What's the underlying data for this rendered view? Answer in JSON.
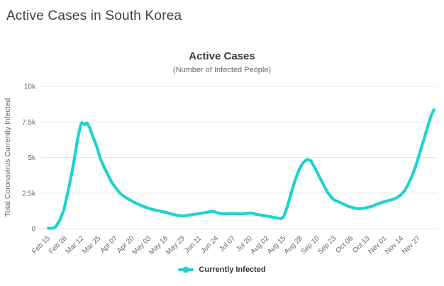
{
  "page": {
    "title": "Active Cases in South Korea"
  },
  "chart": {
    "title": "Active Cases",
    "subtitle": "(Number of Infected People)",
    "y_axis_title": "Total Coronavirus Currently Infected",
    "legend": {
      "label": "Currently Infected"
    }
  },
  "colors": {
    "series": "#20d2cf",
    "grid": "#e7e7e7",
    "axis_text": "#666666",
    "title_text": "#3a3a3a",
    "subtitle_text": "#666666",
    "page_title": "#3c4250",
    "legend_text": "#333333",
    "background": "#ffffff"
  },
  "chart_data": {
    "type": "line",
    "title": "Active Cases",
    "subtitle": "(Number of Infected People)",
    "xlabel": "",
    "ylabel": "Total Coronavirus Currently Infected",
    "ylim": [
      0,
      10000
    ],
    "grid": "horizontal-only",
    "legend_position": "bottom-center",
    "y_ticks": [
      {
        "value": 0,
        "label": "0"
      },
      {
        "value": 2500,
        "label": "2.5k"
      },
      {
        "value": 5000,
        "label": "5k"
      },
      {
        "value": 7500,
        "label": "7.5k"
      },
      {
        "value": 10000,
        "label": "10k"
      }
    ],
    "x_tick_labels": [
      {
        "day": 0,
        "label": "Feb 15"
      },
      {
        "day": 13,
        "label": "Feb 28"
      },
      {
        "day": 26,
        "label": "Mar 12"
      },
      {
        "day": 39,
        "label": "Mar 25"
      },
      {
        "day": 52,
        "label": "Apr 07"
      },
      {
        "day": 65,
        "label": "Apr 20"
      },
      {
        "day": 78,
        "label": "May 03"
      },
      {
        "day": 91,
        "label": "May 16"
      },
      {
        "day": 104,
        "label": "May 29"
      },
      {
        "day": 117,
        "label": "Jun 11"
      },
      {
        "day": 130,
        "label": "Jun 24"
      },
      {
        "day": 143,
        "label": "Jul 07"
      },
      {
        "day": 156,
        "label": "Jul 20"
      },
      {
        "day": 169,
        "label": "Aug 02"
      },
      {
        "day": 182,
        "label": "Aug 15"
      },
      {
        "day": 195,
        "label": "Aug 28"
      },
      {
        "day": 208,
        "label": "Sep 10"
      },
      {
        "day": 221,
        "label": "Sep 23"
      },
      {
        "day": 234,
        "label": "Oct 06"
      },
      {
        "day": 247,
        "label": "Oct 19"
      },
      {
        "day": 260,
        "label": "Nov 01"
      },
      {
        "day": 273,
        "label": "Nov 14"
      },
      {
        "day": 286,
        "label": "Nov 27"
      }
    ],
    "series": [
      {
        "name": "Currently Infected",
        "color": "#20d2cf",
        "points_format": [
          "day_offset_from_Feb15",
          "active_cases",
          "date"
        ],
        "points": [
          [
            0,
            28,
            "Feb 15"
          ],
          [
            4,
            30,
            "Feb 19"
          ],
          [
            6,
            150,
            "Feb 21"
          ],
          [
            9,
            600,
            "Feb 24"
          ],
          [
            12,
            1300,
            "Feb 27"
          ],
          [
            15,
            2500,
            "Mar 01"
          ],
          [
            17,
            3350,
            "Mar 03"
          ],
          [
            19,
            4300,
            "Mar 05"
          ],
          [
            21,
            5350,
            "Mar 07"
          ],
          [
            23,
            6450,
            "Mar 09"
          ],
          [
            25,
            7250,
            "Mar 11"
          ],
          [
            26,
            7450,
            "Mar 12"
          ],
          [
            28,
            7320,
            "Mar 14"
          ],
          [
            30,
            7430,
            "Mar 16"
          ],
          [
            32,
            7100,
            "Mar 18"
          ],
          [
            35,
            6350,
            "Mar 21"
          ],
          [
            38,
            5650,
            "Mar 24"
          ],
          [
            40,
            4980,
            "Mar 26"
          ],
          [
            43,
            4350,
            "Mar 29"
          ],
          [
            46,
            3800,
            "Apr 01"
          ],
          [
            49,
            3270,
            "Apr 04"
          ],
          [
            52,
            2880,
            "Apr 07"
          ],
          [
            56,
            2450,
            "Apr 11"
          ],
          [
            60,
            2180,
            "Apr 15"
          ],
          [
            65,
            1920,
            "Apr 20"
          ],
          [
            70,
            1700,
            "Apr 25"
          ],
          [
            75,
            1510,
            "Apr 30"
          ],
          [
            80,
            1360,
            "May 05"
          ],
          [
            85,
            1260,
            "May 10"
          ],
          [
            91,
            1140,
            "May 16"
          ],
          [
            96,
            1010,
            "May 21"
          ],
          [
            100,
            930,
            "May 25"
          ],
          [
            104,
            890,
            "May 29"
          ],
          [
            108,
            945,
            "Jun 02"
          ],
          [
            113,
            1010,
            "Jun 07"
          ],
          [
            118,
            1080,
            "Jun 12"
          ],
          [
            123,
            1160,
            "Jun 17"
          ],
          [
            127,
            1230,
            "Jun 21"
          ],
          [
            130,
            1140,
            "Jun 24"
          ],
          [
            133,
            1070,
            "Jun 27"
          ],
          [
            137,
            1045,
            "Jul 01"
          ],
          [
            141,
            1060,
            "Jul 05"
          ],
          [
            146,
            1050,
            "Jul 10"
          ],
          [
            150,
            1035,
            "Jul 14"
          ],
          [
            154,
            1080,
            "Jul 18"
          ],
          [
            157,
            1105,
            "Jul 21"
          ],
          [
            160,
            1020,
            "Jul 24"
          ],
          [
            164,
            955,
            "Jul 28"
          ],
          [
            169,
            880,
            "Aug 02"
          ],
          [
            174,
            800,
            "Aug 07"
          ],
          [
            178,
            730,
            "Aug 11"
          ],
          [
            180,
            700,
            "Aug 13"
          ],
          [
            182,
            860,
            "Aug 15"
          ],
          [
            185,
            1620,
            "Aug 18"
          ],
          [
            188,
            2600,
            "Aug 21"
          ],
          [
            191,
            3480,
            "Aug 24"
          ],
          [
            194,
            4180,
            "Aug 27"
          ],
          [
            197,
            4640,
            "Aug 30"
          ],
          [
            200,
            4870,
            "Sep 02"
          ],
          [
            203,
            4760,
            "Sep 05"
          ],
          [
            206,
            4270,
            "Sep 08"
          ],
          [
            210,
            3560,
            "Sep 12"
          ],
          [
            213,
            3020,
            "Sep 15"
          ],
          [
            216,
            2520,
            "Sep 18"
          ],
          [
            219,
            2180,
            "Sep 21"
          ],
          [
            221,
            2010,
            "Sep 23"
          ],
          [
            225,
            1860,
            "Sep 27"
          ],
          [
            229,
            1690,
            "Oct 01"
          ],
          [
            232,
            1560,
            "Oct 04"
          ],
          [
            236,
            1460,
            "Oct 08"
          ],
          [
            240,
            1400,
            "Oct 12"
          ],
          [
            243,
            1425,
            "Oct 15"
          ],
          [
            246,
            1480,
            "Oct 18"
          ],
          [
            250,
            1560,
            "Oct 22"
          ],
          [
            253,
            1680,
            "Oct 25"
          ],
          [
            256,
            1790,
            "Oct 28"
          ],
          [
            260,
            1900,
            "Nov 01"
          ],
          [
            263,
            1975,
            "Nov 04"
          ],
          [
            266,
            2050,
            "Nov 07"
          ],
          [
            269,
            2160,
            "Nov 10"
          ],
          [
            272,
            2350,
            "Nov 13"
          ],
          [
            275,
            2620,
            "Nov 16"
          ],
          [
            278,
            3080,
            "Nov 19"
          ],
          [
            281,
            3700,
            "Nov 22"
          ],
          [
            284,
            4420,
            "Nov 25"
          ],
          [
            287,
            5300,
            "Nov 28"
          ],
          [
            290,
            6200,
            "Dec 01"
          ],
          [
            293,
            7120,
            "Dec 04"
          ],
          [
            296,
            8000,
            "Dec 07"
          ],
          [
            298,
            8350,
            "Dec 09"
          ]
        ]
      }
    ]
  }
}
